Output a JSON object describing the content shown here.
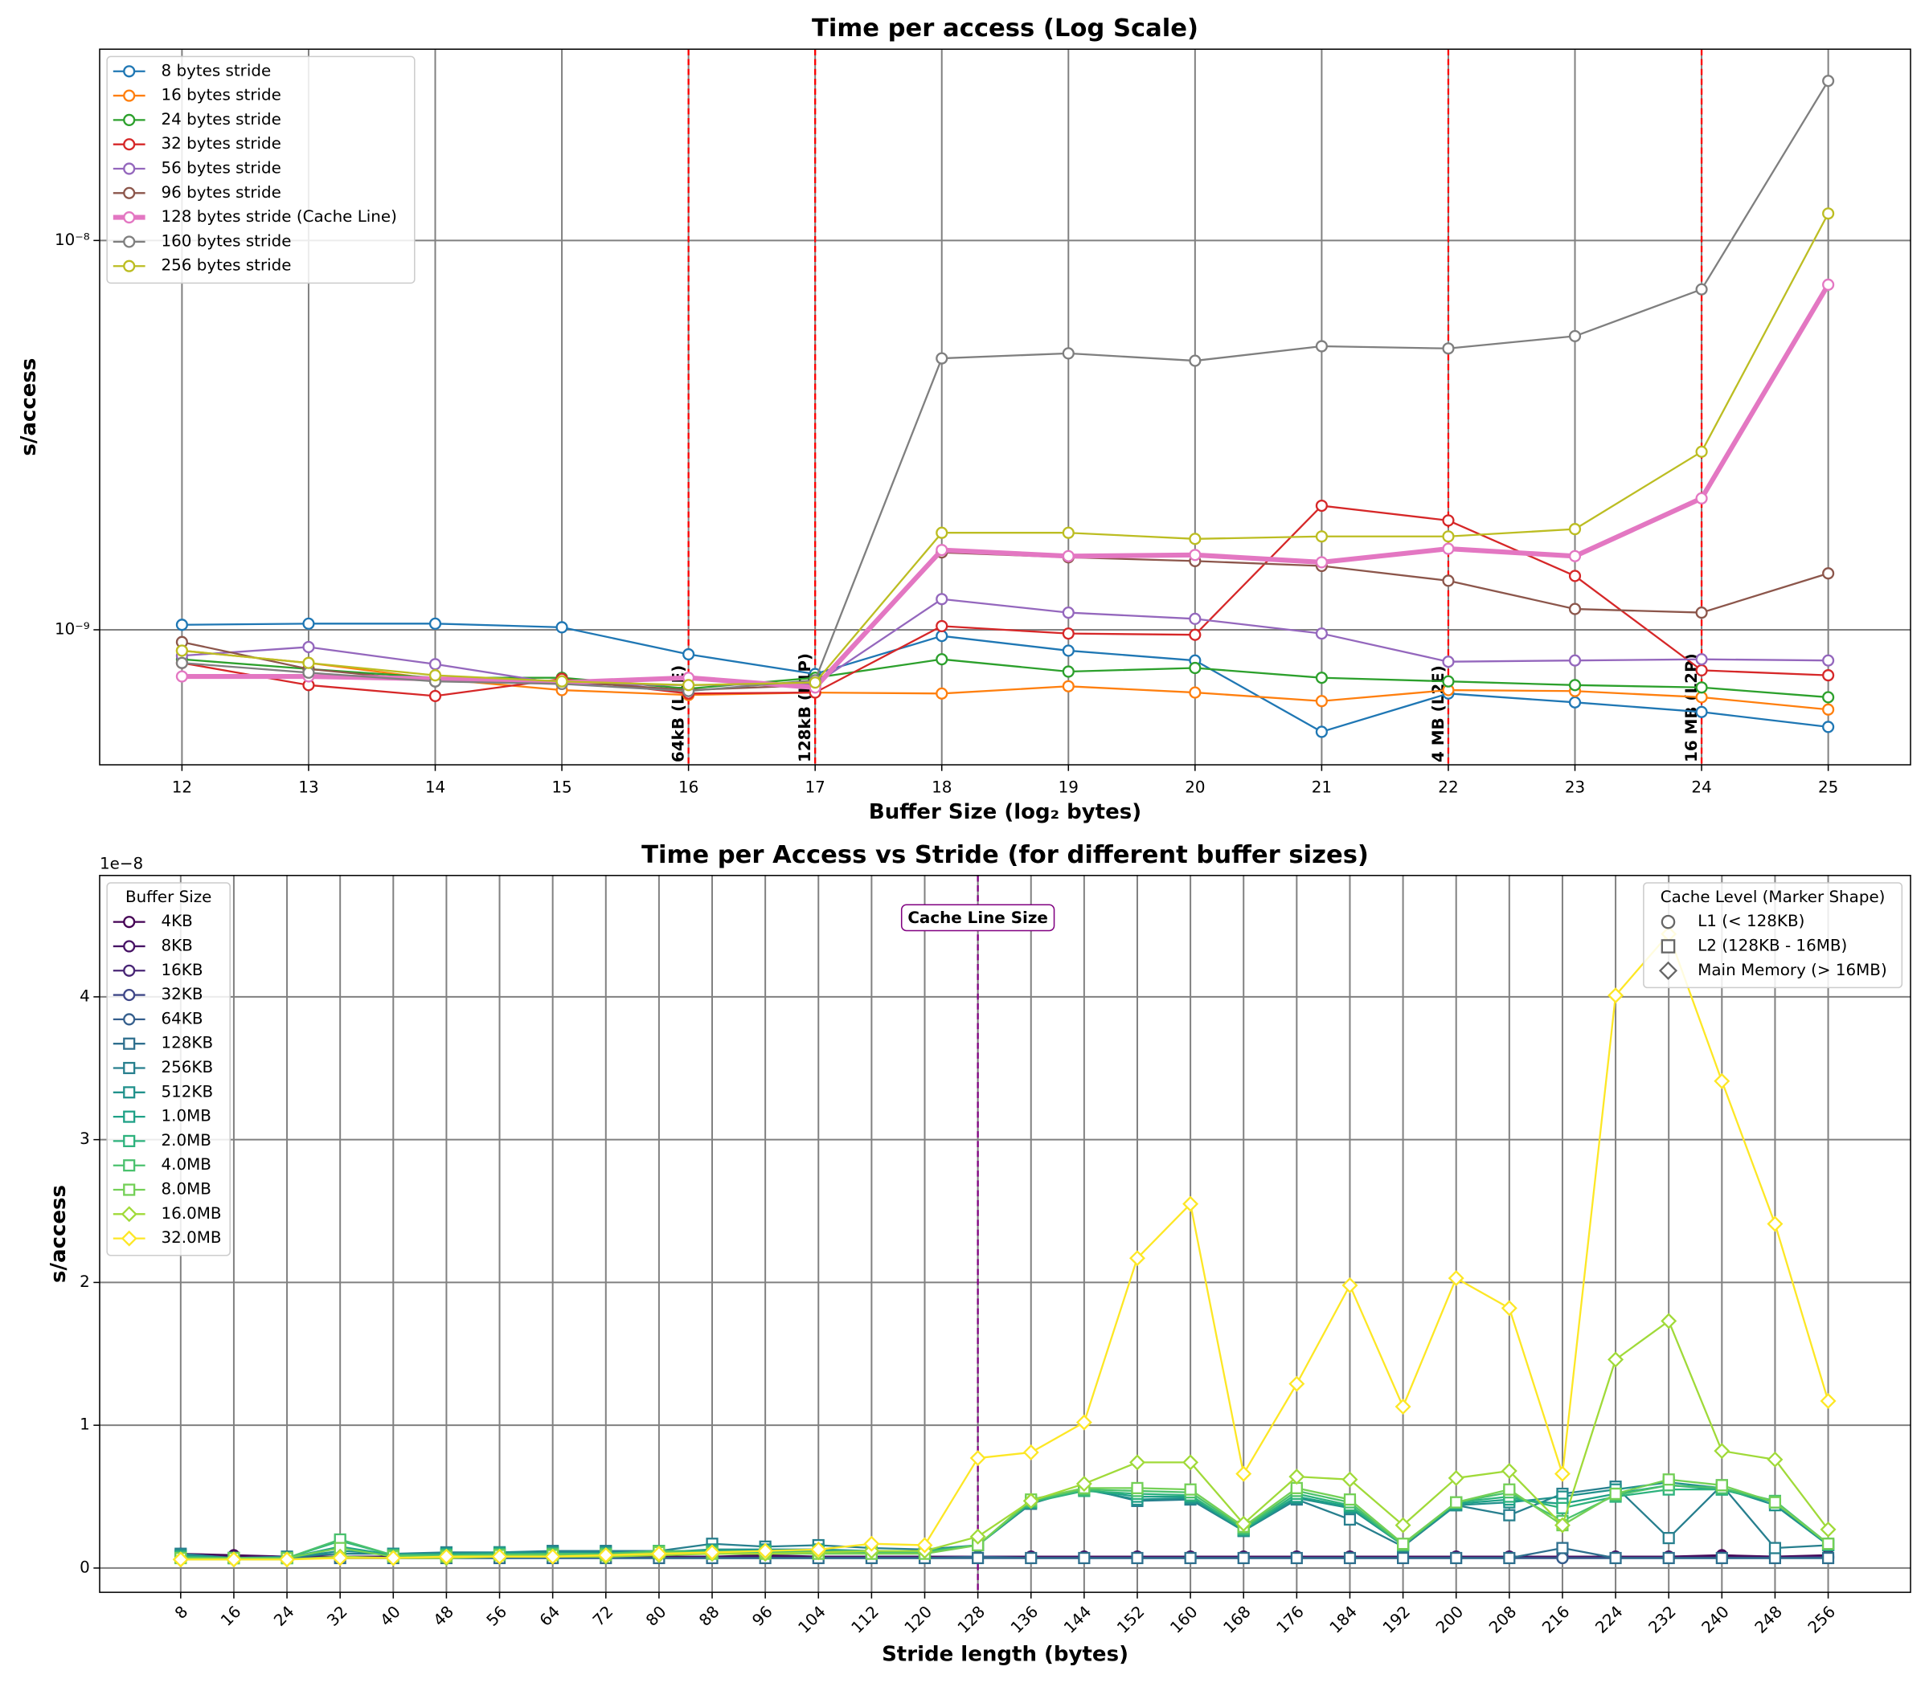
{
  "chart_data": [
    {
      "type": "line",
      "title": "Time per access (Log Scale)",
      "xlabel": "Buffer Size (log₂ bytes)",
      "ylabel": "s/access",
      "x": [
        12,
        13,
        14,
        15,
        16,
        17,
        18,
        19,
        20,
        21,
        22,
        23,
        24,
        25
      ],
      "xlim": [
        11.35,
        25.65
      ],
      "xticks": [
        12,
        13,
        14,
        15,
        16,
        17,
        18,
        19,
        20,
        21,
        22,
        23,
        24,
        25
      ],
      "yscale": "log",
      "ylim": [
        4.5e-10,
        3.1e-08
      ],
      "yticks": [
        {
          "value": 1e-09,
          "label": "10⁻⁹"
        },
        {
          "value": 1e-08,
          "label": "10⁻⁸"
        }
      ],
      "grid": true,
      "legend": "upper left",
      "marker": "circle",
      "vline_color": "#ff0000",
      "vline_label_color": "#0000ff",
      "vlines": [
        {
          "x": 16,
          "label": "64kB (L1E)"
        },
        {
          "x": 17,
          "label": "128kB (L1P)"
        },
        {
          "x": 22,
          "label": "4 MB (L2E)"
        },
        {
          "x": 24,
          "label": "16 MB (L2P)"
        }
      ],
      "series": [
        {
          "name": "8 bytes stride",
          "color": "#1f77b4",
          "values": [
            1.03e-09,
            1.037e-09,
            1.037e-09,
            1.015e-09,
            8.65e-10,
            7.7e-10,
            9.64e-10,
            8.84e-10,
            8.34e-10,
            5.47e-10,
            6.86e-10,
            6.51e-10,
            6.15e-10,
            5.63e-10
          ]
        },
        {
          "name": "16 bytes stride",
          "color": "#ff7f0e",
          "values": [
            8.84e-10,
            8.22e-10,
            7.48e-10,
            7e-10,
            6.8e-10,
            6.9e-10,
            6.86e-10,
            7.16e-10,
            6.9e-10,
            6.56e-10,
            7e-10,
            6.96e-10,
            6.71e-10,
            6.24e-10
          ]
        },
        {
          "name": "24 bytes stride",
          "color": "#2ca02c",
          "values": [
            8.4e-10,
            7.93e-10,
            7.53e-10,
            7.53e-10,
            7.06e-10,
            7.53e-10,
            8.4e-10,
            7.81e-10,
            7.98e-10,
            7.53e-10,
            7.37e-10,
            7.21e-10,
            7.11e-10,
            6.71e-10
          ]
        },
        {
          "name": "32 bytes stride",
          "color": "#d62728",
          "values": [
            8.22e-10,
            7.21e-10,
            6.76e-10,
            7.48e-10,
            6.86e-10,
            6.9e-10,
            1.022e-09,
            9.78e-10,
            9.71e-10,
            2.083e-09,
            1.909e-09,
            1.375e-09,
            7.87e-10,
            7.64e-10
          ]
        },
        {
          "name": "56 bytes stride",
          "color": "#9467bd",
          "values": [
            8.58e-10,
            9.03e-10,
            8.16e-10,
            7.26e-10,
            7.21e-10,
            7.26e-10,
            1.199e-09,
            1.107e-09,
            1.067e-09,
            9.78e-10,
            8.28e-10,
            8.34e-10,
            8.4e-10,
            8.34e-10
          ]
        },
        {
          "name": "96 bytes stride",
          "color": "#8c564b",
          "values": [
            9.3e-10,
            7.93e-10,
            7.37e-10,
            7.37e-10,
            7e-10,
            7.21e-10,
            1.58e-09,
            1.535e-09,
            1.502e-09,
            1.459e-09,
            1.337e-09,
            1.131e-09,
            1.107e-09,
            1.396e-09
          ]
        },
        {
          "name": "128 bytes stride (Cache Line)",
          "color": "#e377c2",
          "linewidth": 4,
          "values": [
            7.59e-10,
            7.59e-10,
            7.48e-10,
            7.32e-10,
            7.53e-10,
            7.11e-10,
            1.603e-09,
            1.546e-09,
            1.557e-09,
            1.491e-09,
            1.615e-09,
            1.546e-09,
            2.176e-09,
            7.7e-09
          ]
        },
        {
          "name": "160 bytes stride",
          "color": "#7f7f7f",
          "values": [
            8.22e-10,
            7.76e-10,
            7.37e-10,
            7.26e-10,
            6.96e-10,
            7.42e-10,
            4.98e-09,
            5.13e-09,
            4.91e-09,
            5.35e-09,
            5.28e-09,
            5.68e-09,
            7.49e-09,
            2.57e-08
          ]
        },
        {
          "name": "256 bytes stride",
          "color": "#bcbd22",
          "values": [
            8.84e-10,
            8.22e-10,
            7.64e-10,
            7.37e-10,
            7.21e-10,
            7.32e-10,
            1.775e-09,
            1.775e-09,
            1.712e-09,
            1.737e-09,
            1.737e-09,
            1.814e-09,
            2.867e-09,
            1.173e-08
          ]
        }
      ]
    },
    {
      "type": "line",
      "title": "Time per Access vs Stride (for different buffer sizes)",
      "xlabel": "Stride length (bytes)",
      "ylabel": "s/access",
      "offset_label": "1e−8",
      "x": [
        8,
        16,
        24,
        32,
        40,
        48,
        56,
        64,
        72,
        80,
        88,
        96,
        104,
        112,
        120,
        128,
        136,
        144,
        152,
        160,
        168,
        176,
        184,
        192,
        200,
        208,
        216,
        224,
        232,
        240,
        248,
        256
      ],
      "xlim": [
        -4.2,
        268.4
      ],
      "xticks": [
        8,
        16,
        24,
        32,
        40,
        48,
        56,
        64,
        72,
        80,
        88,
        96,
        104,
        112,
        120,
        128,
        136,
        144,
        152,
        160,
        168,
        176,
        184,
        192,
        200,
        208,
        216,
        224,
        232,
        240,
        248,
        256
      ],
      "xtick_rotation": 45,
      "ylim": [
        -0.17,
        4.85
      ],
      "yticks": [
        0,
        1,
        2,
        3,
        4
      ],
      "grid": true,
      "legend": "upper left",
      "legend_title": "Buffer Size",
      "vline_color": "#800080",
      "vlines": [
        {
          "x": 128
        }
      ],
      "annotation": "Cache Line Size",
      "marker_legend": {
        "title": "Cache Level (Marker Shape)",
        "loc": "upper right",
        "entries": [
          {
            "label": "L1 (< 128KB)",
            "marker": "circle"
          },
          {
            "label": "L2 (128KB - 16MB)",
            "marker": "square"
          },
          {
            "label": "Main Memory (> 16MB)",
            "marker": "diamond"
          }
        ]
      },
      "series": [
        {
          "name": "4KB",
          "color": "#440154",
          "marker": "circle",
          "values": [
            0.1,
            0.09,
            0.08,
            0.08,
            0.08,
            0.08,
            0.09,
            0.08,
            0.08,
            0.08,
            0.08,
            0.09,
            0.08,
            0.08,
            0.08,
            0.08,
            0.08,
            0.08,
            0.08,
            0.08,
            0.08,
            0.08,
            0.08,
            0.08,
            0.08,
            0.08,
            0.08,
            0.08,
            0.08,
            0.09,
            0.08,
            0.09
          ]
        },
        {
          "name": "8KB",
          "color": "#471365",
          "marker": "circle",
          "values": [
            0.1,
            0.08,
            0.08,
            0.07,
            0.08,
            0.08,
            0.09,
            0.08,
            0.08,
            0.08,
            0.08,
            0.08,
            0.08,
            0.08,
            0.08,
            0.08,
            0.08,
            0.08,
            0.08,
            0.08,
            0.08,
            0.08,
            0.08,
            0.08,
            0.08,
            0.08,
            0.08,
            0.08,
            0.08,
            0.08,
            0.08,
            0.08
          ]
        },
        {
          "name": "16KB",
          "color": "#482575",
          "marker": "circle",
          "values": [
            0.1,
            0.07,
            0.08,
            0.07,
            0.07,
            0.07,
            0.08,
            0.07,
            0.07,
            0.07,
            0.07,
            0.07,
            0.07,
            0.07,
            0.07,
            0.07,
            0.07,
            0.07,
            0.07,
            0.07,
            0.07,
            0.07,
            0.07,
            0.07,
            0.07,
            0.07,
            0.07,
            0.07,
            0.07,
            0.07,
            0.07,
            0.08
          ]
        },
        {
          "name": "32KB",
          "color": "#3f4788",
          "marker": "circle",
          "values": [
            0.1,
            0.07,
            0.08,
            0.07,
            0.07,
            0.07,
            0.07,
            0.07,
            0.07,
            0.07,
            0.07,
            0.07,
            0.07,
            0.07,
            0.07,
            0.07,
            0.07,
            0.07,
            0.07,
            0.07,
            0.07,
            0.07,
            0.07,
            0.07,
            0.07,
            0.07,
            0.07,
            0.07,
            0.07,
            0.07,
            0.07,
            0.07
          ]
        },
        {
          "name": "64KB",
          "color": "#355f8d",
          "marker": "circle",
          "values": [
            0.09,
            0.07,
            0.07,
            0.07,
            0.07,
            0.07,
            0.07,
            0.07,
            0.07,
            0.07,
            0.07,
            0.07,
            0.07,
            0.07,
            0.07,
            0.08,
            0.07,
            0.07,
            0.07,
            0.07,
            0.07,
            0.07,
            0.07,
            0.07,
            0.07,
            0.07,
            0.07,
            0.07,
            0.07,
            0.07,
            0.07,
            0.07
          ]
        },
        {
          "name": "128KB",
          "color": "#2e6f8e",
          "marker": "square",
          "values": [
            0.08,
            0.07,
            0.07,
            0.07,
            0.07,
            0.07,
            0.07,
            0.07,
            0.07,
            0.07,
            0.07,
            0.07,
            0.07,
            0.07,
            0.07,
            0.07,
            0.07,
            0.07,
            0.07,
            0.07,
            0.07,
            0.07,
            0.07,
            0.07,
            0.07,
            0.07,
            0.14,
            0.07,
            0.07,
            0.07,
            0.07,
            0.07
          ]
        },
        {
          "name": "256KB",
          "color": "#277f8e",
          "marker": "square",
          "values": [
            0.1,
            0.07,
            0.08,
            0.1,
            0.1,
            0.11,
            0.11,
            0.12,
            0.12,
            0.12,
            0.17,
            0.15,
            0.16,
            0.14,
            0.13,
            0.16,
            0.45,
            0.56,
            0.47,
            0.48,
            0.26,
            0.48,
            0.34,
            0.15,
            0.44,
            0.37,
            0.52,
            0.57,
            0.21,
            0.58,
            0.14,
            0.16
          ]
        },
        {
          "name": "512KB",
          "color": "#21918c",
          "marker": "square",
          "values": [
            0.09,
            0.07,
            0.07,
            0.12,
            0.1,
            0.1,
            0.11,
            0.11,
            0.11,
            0.11,
            0.13,
            0.13,
            0.13,
            0.12,
            0.12,
            0.16,
            0.46,
            0.55,
            0.48,
            0.49,
            0.26,
            0.49,
            0.42,
            0.16,
            0.44,
            0.46,
            0.5,
            0.55,
            0.6,
            0.56,
            0.44,
            0.16
          ]
        },
        {
          "name": "1.0MB",
          "color": "#1fa187",
          "marker": "square",
          "values": [
            0.08,
            0.07,
            0.07,
            0.15,
            0.09,
            0.1,
            0.1,
            0.1,
            0.1,
            0.11,
            0.12,
            0.12,
            0.12,
            0.12,
            0.12,
            0.16,
            0.46,
            0.55,
            0.5,
            0.5,
            0.27,
            0.5,
            0.43,
            0.16,
            0.45,
            0.48,
            0.45,
            0.52,
            0.58,
            0.55,
            0.46,
            0.16
          ]
        },
        {
          "name": "2.0MB",
          "color": "#2db27d",
          "marker": "square",
          "values": [
            0.08,
            0.07,
            0.07,
            0.19,
            0.09,
            0.09,
            0.1,
            0.1,
            0.1,
            0.12,
            0.12,
            0.12,
            0.12,
            0.12,
            0.12,
            0.16,
            0.46,
            0.54,
            0.52,
            0.51,
            0.27,
            0.52,
            0.44,
            0.16,
            0.46,
            0.5,
            0.42,
            0.5,
            0.55,
            0.55,
            0.46,
            0.17
          ]
        },
        {
          "name": "4.0MB",
          "color": "#4ac16d",
          "marker": "square",
          "values": [
            0.07,
            0.07,
            0.07,
            0.2,
            0.09,
            0.09,
            0.09,
            0.1,
            0.1,
            0.12,
            0.11,
            0.11,
            0.11,
            0.11,
            0.11,
            0.16,
            0.47,
            0.55,
            0.54,
            0.53,
            0.28,
            0.54,
            0.46,
            0.16,
            0.46,
            0.53,
            0.33,
            0.51,
            0.58,
            0.56,
            0.47,
            0.17
          ]
        },
        {
          "name": "8.0MB",
          "color": "#73d056",
          "marker": "square",
          "values": [
            0.07,
            0.07,
            0.07,
            0.14,
            0.08,
            0.08,
            0.09,
            0.09,
            0.09,
            0.11,
            0.1,
            0.1,
            0.1,
            0.1,
            0.1,
            0.16,
            0.48,
            0.56,
            0.56,
            0.55,
            0.29,
            0.56,
            0.48,
            0.17,
            0.46,
            0.55,
            0.3,
            0.52,
            0.62,
            0.58,
            0.46,
            0.17
          ]
        },
        {
          "name": "16.0MB",
          "color": "#a0da39",
          "marker": "diamond",
          "values": [
            0.06,
            0.06,
            0.06,
            0.08,
            0.07,
            0.07,
            0.08,
            0.08,
            0.08,
            0.09,
            0.1,
            0.1,
            0.11,
            0.12,
            0.12,
            0.22,
            0.47,
            0.59,
            0.74,
            0.74,
            0.31,
            0.64,
            0.62,
            0.3,
            0.63,
            0.68,
            0.3,
            1.46,
            1.73,
            0.82,
            0.76,
            0.27
          ]
        },
        {
          "name": "32.0MB",
          "color": "#fde725",
          "marker": "diamond",
          "values": [
            0.06,
            0.06,
            0.06,
            0.07,
            0.07,
            0.08,
            0.08,
            0.08,
            0.09,
            0.1,
            0.11,
            0.12,
            0.13,
            0.17,
            0.16,
            0.77,
            0.81,
            1.02,
            2.17,
            2.55,
            0.66,
            1.29,
            1.98,
            1.13,
            2.03,
            1.82,
            0.66,
            4.01,
            4.44,
            3.41,
            2.41,
            1.17
          ]
        }
      ]
    }
  ]
}
